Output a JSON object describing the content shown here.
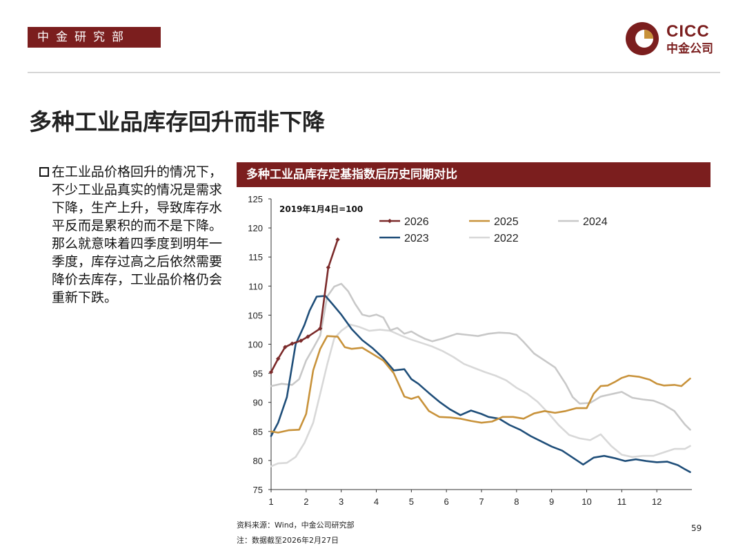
{
  "header": {
    "department": "中金研究部",
    "logo_en": "CICC",
    "logo_cn": "中金公司"
  },
  "title": "多种工业品库存回升而非下降",
  "bullet_text": "在工业品价格回升的情况下，不少工业品真实的情况是需求下降，生产上升，导致库存水平反而是累积的而不是下降。那么就意味着四季度到明年一季度，库存过高之后依然需要降价去库存，工业品价格仍会重新下跌。",
  "chart_header": "多种工业品库存定基指数后历史同期对比",
  "chart_data": {
    "type": "line",
    "title": "多种工业品库存定基指数后历史同期对比",
    "annotation": "2019年1月4日=100",
    "xlabel": "",
    "ylabel": "",
    "xlim": [
      1,
      13
    ],
    "ylim": [
      75,
      125
    ],
    "x_ticks": [
      "1",
      "2",
      "3",
      "4",
      "5",
      "6",
      "7",
      "8",
      "9",
      "10",
      "11",
      "12"
    ],
    "y_ticks": [
      "75",
      "80",
      "85",
      "90",
      "95",
      "100",
      "105",
      "110",
      "115",
      "120",
      "125"
    ],
    "legend": [
      "2026",
      "2025",
      "2024",
      "2023",
      "2022"
    ],
    "series": [
      {
        "name": "2026",
        "color": "#7b2a2a",
        "marker": "diamond",
        "x": [
          1.0,
          1.2,
          1.4,
          1.6,
          1.85,
          2.05,
          2.4,
          2.63,
          2.9
        ],
        "y": [
          95.2,
          97.5,
          99.5,
          100.1,
          100.6,
          101.3,
          102.7,
          113.2,
          118.0
        ]
      },
      {
        "name": "2025",
        "color": "#c8923a",
        "x": [
          1.0,
          1.2,
          1.5,
          1.8,
          2.0,
          2.2,
          2.4,
          2.6,
          2.9,
          3.1,
          3.3,
          3.6,
          3.9,
          4.2,
          4.5,
          4.8,
          5.0,
          5.2,
          5.5,
          5.8,
          6.1,
          6.4,
          6.7,
          7.0,
          7.3,
          7.6,
          7.9,
          8.2,
          8.5,
          8.8,
          9.1,
          9.4,
          9.7,
          10.0,
          10.2,
          10.4,
          10.6,
          10.8,
          11.0,
          11.2,
          11.5,
          11.8,
          12.0,
          12.2,
          12.5,
          12.7,
          12.95
        ],
        "y": [
          85.0,
          84.8,
          85.2,
          85.3,
          88.0,
          95.5,
          99.2,
          101.4,
          101.3,
          99.5,
          99.2,
          99.4,
          98.3,
          97.2,
          95.0,
          91.0,
          90.6,
          91.0,
          88.5,
          87.5,
          87.4,
          87.2,
          86.8,
          86.5,
          86.7,
          87.5,
          87.5,
          87.2,
          88.1,
          88.5,
          88.2,
          88.5,
          89.0,
          89.0,
          91.5,
          92.8,
          92.9,
          93.5,
          94.2,
          94.6,
          94.4,
          93.9,
          93.2,
          92.9,
          93.0,
          92.8,
          94.1
        ]
      },
      {
        "name": "2024",
        "color": "#c8c8c8",
        "x": [
          1.0,
          1.3,
          1.6,
          1.8,
          2.0,
          2.2,
          2.4,
          2.6,
          2.8,
          3.0,
          3.2,
          3.4,
          3.6,
          3.8,
          4.0,
          4.2,
          4.4,
          4.6,
          4.8,
          5.0,
          5.2,
          5.4,
          5.6,
          5.9,
          6.1,
          6.3,
          6.6,
          6.9,
          7.2,
          7.5,
          7.8,
          8.0,
          8.2,
          8.5,
          8.8,
          9.1,
          9.4,
          9.6,
          9.8,
          10.1,
          10.4,
          10.7,
          11.0,
          11.3,
          11.6,
          11.9,
          12.2,
          12.5,
          12.8,
          12.95
        ],
        "y": [
          92.8,
          93.2,
          93.0,
          94.0,
          97.2,
          99.3,
          101.5,
          108.2,
          109.9,
          110.4,
          109.1,
          106.9,
          105.1,
          104.8,
          105.1,
          104.6,
          102.4,
          102.8,
          101.8,
          102.2,
          101.5,
          100.9,
          100.5,
          101.0,
          101.4,
          101.8,
          101.6,
          101.4,
          101.8,
          102.0,
          101.9,
          101.6,
          100.4,
          98.4,
          97.2,
          96.0,
          93.2,
          90.9,
          89.8,
          89.9,
          91.0,
          91.4,
          91.8,
          90.8,
          90.5,
          90.3,
          89.6,
          88.5,
          86.2,
          85.3
        ]
      },
      {
        "name": "2023",
        "color": "#1f4e79",
        "x": [
          1.0,
          1.2,
          1.45,
          1.7,
          1.95,
          2.1,
          2.3,
          2.55,
          2.75,
          3.0,
          3.3,
          3.6,
          3.9,
          4.2,
          4.5,
          4.8,
          5.0,
          5.2,
          5.5,
          5.8,
          6.1,
          6.4,
          6.7,
          7.0,
          7.2,
          7.5,
          7.8,
          8.1,
          8.4,
          8.7,
          9.0,
          9.3,
          9.6,
          9.9,
          10.2,
          10.5,
          10.8,
          11.1,
          11.4,
          11.7,
          12.0,
          12.3,
          12.6,
          12.8,
          12.95
        ],
        "y": [
          84.2,
          86.5,
          90.9,
          100.0,
          103.3,
          105.8,
          108.2,
          108.3,
          106.9,
          105.1,
          102.6,
          100.7,
          99.3,
          97.6,
          95.5,
          95.7,
          94.0,
          93.2,
          91.6,
          90.1,
          88.8,
          87.8,
          88.6,
          88.0,
          87.5,
          87.2,
          86.1,
          85.3,
          84.2,
          83.3,
          82.4,
          81.7,
          80.5,
          79.3,
          80.5,
          80.8,
          80.4,
          79.9,
          80.2,
          79.9,
          79.7,
          79.8,
          79.2,
          78.5,
          78.0
        ]
      },
      {
        "name": "2022",
        "color": "#d8d8d8",
        "x": [
          1.0,
          1.2,
          1.45,
          1.7,
          1.95,
          2.2,
          2.4,
          2.6,
          2.8,
          3.0,
          3.25,
          3.5,
          3.8,
          4.1,
          4.4,
          4.7,
          5.0,
          5.3,
          5.6,
          5.9,
          6.2,
          6.5,
          6.8,
          7.1,
          7.4,
          7.7,
          8.0,
          8.3,
          8.6,
          8.9,
          9.2,
          9.5,
          9.8,
          10.1,
          10.4,
          10.7,
          11.0,
          11.3,
          11.6,
          11.9,
          12.2,
          12.5,
          12.8,
          12.95
        ],
        "y": [
          79.0,
          79.5,
          79.6,
          80.6,
          83.0,
          86.5,
          91.5,
          96.5,
          101.0,
          102.3,
          103.4,
          103.0,
          102.3,
          102.5,
          102.3,
          101.5,
          100.8,
          100.2,
          99.6,
          98.8,
          97.8,
          96.6,
          95.9,
          95.2,
          94.6,
          93.8,
          92.5,
          91.5,
          90.1,
          88.2,
          86.1,
          84.4,
          83.8,
          83.5,
          84.5,
          82.5,
          81.0,
          80.6,
          80.8,
          80.8,
          81.4,
          82.0,
          82.0,
          82.5
        ]
      }
    ]
  },
  "source": "资料来源：Wind，中金公司研究部",
  "note": "注：数据截至2026年2月27日",
  "page_number": "59"
}
